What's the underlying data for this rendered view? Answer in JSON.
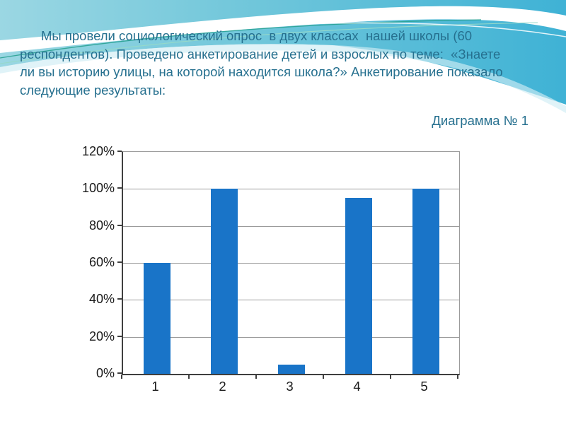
{
  "slide": {
    "paragraph_lines": [
      "Мы провели социологический опрос  в двух классах  нашей школы (60",
      "респондентов). Проведено анкетирование детей и взрослых по теме:  «Знаете",
      "ли вы историю улицы, на которой находится школа?» Анкетирование показало",
      "следующие результаты:"
    ],
    "caption": "Диаграмма № 1"
  },
  "colors": {
    "text": "#26708f",
    "bar": "#1974c8",
    "axis": "#3f3f3f",
    "grid": "#9b9b9b",
    "label": "#1a1a1a",
    "wave_light": "#9bd7e3",
    "wave_mid": "#74c8db",
    "wave_deep": "#3fb2d5"
  },
  "chart_data": {
    "type": "bar",
    "title": "Диаграмма № 1",
    "categories": [
      "1",
      "2",
      "3",
      "4",
      "5"
    ],
    "values": [
      60,
      100,
      5,
      95,
      100
    ],
    "unit": "%",
    "xlabel": "",
    "ylabel": "",
    "ylim": [
      0,
      120
    ],
    "ytick_step": 20,
    "ytick_labels": [
      "0%",
      "20%",
      "40%",
      "60%",
      "80%",
      "100%",
      "120%"
    ],
    "grid": true,
    "legend": false,
    "bar_color": "#1974c8"
  }
}
